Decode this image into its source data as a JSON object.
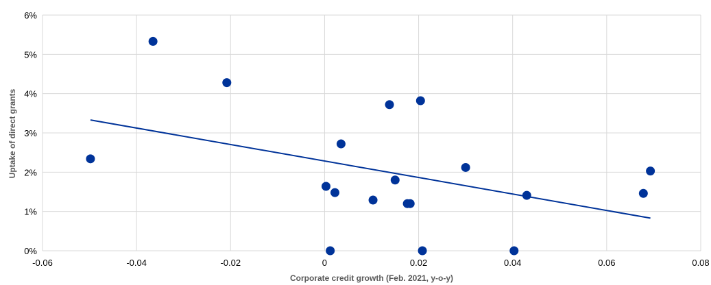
{
  "chart_data": {
    "type": "scatter",
    "title": "",
    "xlabel": "Corporate credit growth (Feb. 2021, y-o-y)",
    "ylabel": "Uptake of direct grants",
    "xlim": [
      -0.06,
      0.08
    ],
    "ylim": [
      0,
      6
    ],
    "x_ticks": [
      "-0.06",
      "-0.04",
      "-0.02",
      "0",
      "0.02",
      "0.04",
      "0.06",
      "0.08"
    ],
    "y_ticks": [
      "0%",
      "1%",
      "2%",
      "3%",
      "4%",
      "5%",
      "6%"
    ],
    "x_tick_values": [
      -0.06,
      -0.04,
      -0.02,
      0,
      0.02,
      0.04,
      0.06,
      0.08
    ],
    "y_tick_values": [
      0,
      1,
      2,
      3,
      4,
      5,
      6
    ],
    "grid": true,
    "legend": "none",
    "marker_color": "#003399",
    "trendline_color": "#003399",
    "series": [
      {
        "name": "",
        "points": [
          {
            "x": -0.0498,
            "y": 2.34
          },
          {
            "x": -0.0365,
            "y": 5.33
          },
          {
            "x": -0.0208,
            "y": 4.28
          },
          {
            "x": 0.0003,
            "y": 1.64
          },
          {
            "x": 0.0012,
            "y": 0.0
          },
          {
            "x": 0.0022,
            "y": 1.48
          },
          {
            "x": 0.0035,
            "y": 2.72
          },
          {
            "x": 0.0103,
            "y": 1.29
          },
          {
            "x": 0.0138,
            "y": 3.72
          },
          {
            "x": 0.015,
            "y": 1.8
          },
          {
            "x": 0.0176,
            "y": 1.2
          },
          {
            "x": 0.0182,
            "y": 1.2
          },
          {
            "x": 0.0204,
            "y": 3.82
          },
          {
            "x": 0.0208,
            "y": 0.0
          },
          {
            "x": 0.03,
            "y": 2.12
          },
          {
            "x": 0.0403,
            "y": 0.0
          },
          {
            "x": 0.043,
            "y": 1.41
          },
          {
            "x": 0.0678,
            "y": 1.46
          },
          {
            "x": 0.0693,
            "y": 2.03
          }
        ]
      }
    ],
    "trendline": {
      "x": [
        -0.0498,
        0.0693
      ],
      "y": [
        3.33,
        0.83
      ]
    }
  }
}
